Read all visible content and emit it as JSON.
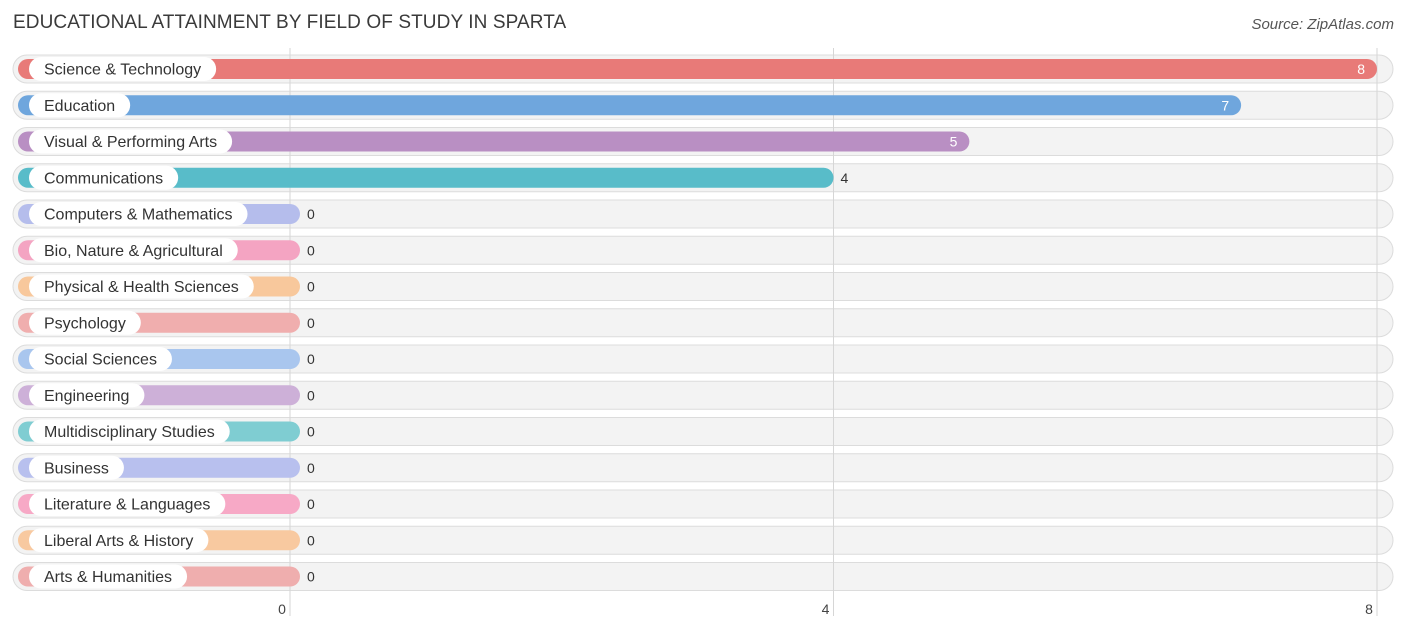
{
  "header": {
    "title": "EDUCATIONAL ATTAINMENT BY FIELD OF STUDY IN SPARTA",
    "source": "Source: ZipAtlas.com"
  },
  "chart_data": {
    "type": "bar",
    "orientation": "horizontal",
    "title": "EDUCATIONAL ATTAINMENT BY FIELD OF STUDY IN SPARTA",
    "xlabel": "",
    "ylabel": "",
    "xlim": [
      0,
      8
    ],
    "ticks": [
      0,
      4,
      8
    ],
    "grid": true,
    "categories": [
      "Science & Technology",
      "Education",
      "Visual & Performing Arts",
      "Communications",
      "Computers & Mathematics",
      "Bio, Nature & Agricultural",
      "Physical & Health Sciences",
      "Psychology",
      "Social Sciences",
      "Engineering",
      "Multidisciplinary Studies",
      "Business",
      "Literature & Languages",
      "Liberal Arts & History",
      "Arts & Humanities"
    ],
    "values": [
      8,
      7,
      5,
      4,
      0,
      0,
      0,
      0,
      0,
      0,
      0,
      0,
      0,
      0,
      0
    ],
    "colors": [
      "#e87a78",
      "#6fa6dd",
      "#b98fc3",
      "#58bcc9",
      "#b5bdec",
      "#f4a4c2",
      "#f8c89c",
      "#f0aeae",
      "#a9c6ee",
      "#cdb0d8",
      "#7fcdd2",
      "#b8c0ee",
      "#f7a9c6",
      "#f8c9a0",
      "#efaeae"
    ]
  }
}
